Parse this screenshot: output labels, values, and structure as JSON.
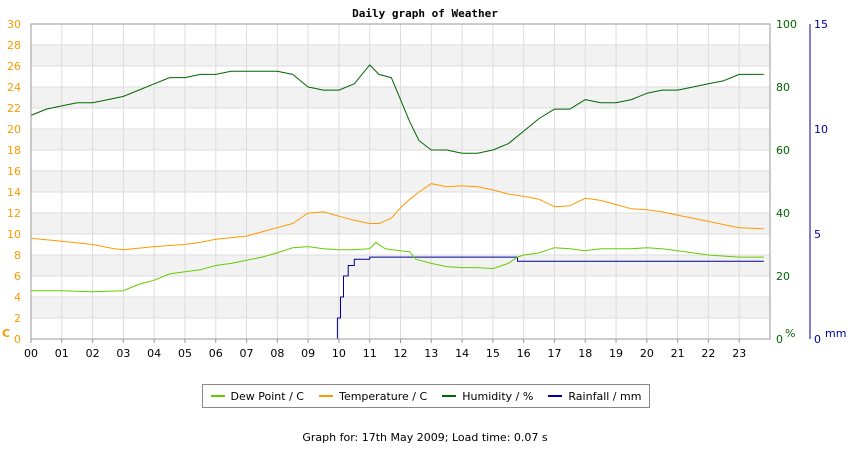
{
  "chart_data": {
    "type": "line",
    "title": "Daily graph of Weather",
    "footer": "Graph for: 17th May 2009; Load time: 0.07 s",
    "x_ticks": [
      "00",
      "01",
      "02",
      "03",
      "04",
      "05",
      "06",
      "07",
      "08",
      "09",
      "10",
      "11",
      "12",
      "13",
      "14",
      "15",
      "16",
      "17",
      "18",
      "19",
      "20",
      "21",
      "22",
      "23"
    ],
    "xlim": [
      0,
      24
    ],
    "left_axis": {
      "unit_label": "C",
      "ylim": [
        0,
        30
      ],
      "ticks": [
        "0",
        "2",
        "4",
        "6",
        "8",
        "10",
        "12",
        "14",
        "16",
        "18",
        "20",
        "22",
        "24",
        "26",
        "28",
        "30"
      ],
      "color": "#ff9900"
    },
    "right_axis_1": {
      "unit_label": "%",
      "ylim": [
        0,
        100
      ],
      "ticks": [
        "0",
        "20",
        "40",
        "60",
        "80",
        "100"
      ],
      "color": "#006600"
    },
    "right_axis_2": {
      "unit_label": "mm",
      "ylim": [
        0,
        15
      ],
      "ticks": [
        "0",
        "5",
        "10",
        "15"
      ],
      "color": "#000099"
    },
    "grid": true,
    "legend_placement": "bottom",
    "series": [
      {
        "name": "Dew Point / C",
        "axis": "left",
        "color": "#66cc00",
        "x": [
          0,
          1,
          2,
          3,
          3.5,
          4,
          4.5,
          5,
          5.5,
          6,
          6.5,
          7,
          7.5,
          8,
          8.5,
          9,
          9.5,
          10,
          10.5,
          11,
          11.2,
          11.5,
          12,
          12.3,
          12.5,
          13,
          13.5,
          14,
          14.5,
          15,
          15.5,
          15.8,
          16,
          16.5,
          17,
          17.5,
          18,
          18.5,
          19,
          19.5,
          20,
          20.5,
          21,
          21.5,
          22,
          22.5,
          23,
          23.8
        ],
        "y": [
          4.6,
          4.6,
          4.5,
          4.6,
          5.2,
          5.6,
          6.2,
          6.4,
          6.6,
          7.0,
          7.2,
          7.5,
          7.8,
          8.2,
          8.7,
          8.8,
          8.6,
          8.5,
          8.5,
          8.6,
          9.2,
          8.6,
          8.4,
          8.3,
          7.6,
          7.2,
          6.9,
          6.8,
          6.8,
          6.7,
          7.2,
          7.8,
          8.0,
          8.2,
          8.7,
          8.6,
          8.4,
          8.6,
          8.6,
          8.6,
          8.7,
          8.6,
          8.4,
          8.2,
          8.0,
          7.9,
          7.8,
          7.8
        ]
      },
      {
        "name": "Temperature / C",
        "axis": "left",
        "color": "#ff9900",
        "x": [
          0,
          1,
          2,
          2.7,
          3,
          4,
          5,
          5.5,
          6,
          7,
          7.5,
          8,
          8.5,
          9,
          9.5,
          10,
          10.5,
          11,
          11.3,
          11.7,
          12,
          12.3,
          12.6,
          13,
          13.5,
          14,
          14.5,
          15,
          15.5,
          16,
          16.5,
          17,
          17.5,
          18,
          18.5,
          19,
          19.5,
          20,
          20.5,
          21,
          21.5,
          22,
          22.5,
          23,
          23.8
        ],
        "y": [
          9.6,
          9.3,
          9.0,
          8.6,
          8.5,
          8.8,
          9.0,
          9.2,
          9.5,
          9.8,
          10.2,
          10.6,
          11.0,
          12.0,
          12.1,
          11.7,
          11.3,
          11.0,
          11.0,
          11.5,
          12.5,
          13.3,
          14.0,
          14.8,
          14.5,
          14.6,
          14.5,
          14.2,
          13.8,
          13.6,
          13.3,
          12.6,
          12.7,
          13.4,
          13.2,
          12.8,
          12.4,
          12.3,
          12.1,
          11.8,
          11.5,
          11.2,
          10.9,
          10.6,
          10.5
        ]
      },
      {
        "name": "Humidity / %",
        "axis": "right_1",
        "color": "#006600",
        "x": [
          0,
          0.5,
          1,
          1.5,
          2,
          2.5,
          3,
          3.5,
          4,
          4.5,
          5,
          5.5,
          6,
          6.5,
          7,
          7.5,
          8,
          8.5,
          9,
          9.5,
          10,
          10.5,
          11,
          11.3,
          11.7,
          12,
          12.3,
          12.6,
          13,
          13.5,
          14,
          14.5,
          15,
          15.5,
          16,
          16.5,
          17,
          17.5,
          18,
          18.5,
          19,
          19.5,
          20,
          20.5,
          21,
          21.5,
          22,
          22.5,
          23,
          23.8
        ],
        "y": [
          71,
          73,
          74,
          75,
          75,
          76,
          77,
          79,
          81,
          83,
          83,
          84,
          84,
          85,
          85,
          85,
          85,
          84,
          80,
          79,
          79,
          81,
          87,
          84,
          83,
          76,
          69,
          63,
          60,
          60,
          59,
          59,
          60,
          62,
          66,
          70,
          73,
          73,
          76,
          75,
          75,
          76,
          78,
          79,
          79,
          80,
          81,
          82,
          84,
          84
        ]
      },
      {
        "name": "Rainfall / mm",
        "axis": "right_2",
        "color": "#000099",
        "step": true,
        "x": [
          0,
          9.9,
          9.95,
          10.05,
          10.15,
          10.3,
          10.5,
          10.9,
          11,
          15.7,
          15.8,
          23.8
        ],
        "y": [
          0,
          0,
          1.0,
          2.0,
          3.0,
          3.5,
          3.8,
          3.8,
          3.9,
          3.9,
          3.7,
          3.7
        ]
      }
    ]
  }
}
